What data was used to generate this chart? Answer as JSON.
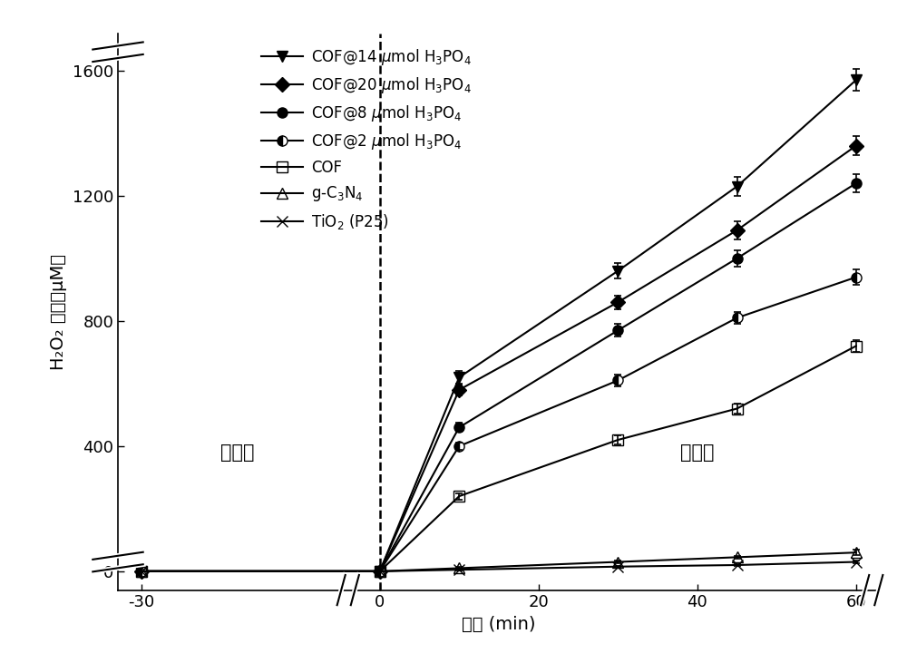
{
  "series": [
    {
      "label_display": "COF@14 μmol H$_3$PO$_4$",
      "marker": "v",
      "fillstyle": "full",
      "x": [
        -30,
        0,
        10,
        30,
        45,
        60
      ],
      "y": [
        0,
        0,
        620,
        960,
        1230,
        1570
      ],
      "yerr": [
        0,
        0,
        20,
        25,
        30,
        35
      ]
    },
    {
      "label_display": "COF@20 μmol H$_3$PO$_4$",
      "marker": "D",
      "fillstyle": "full",
      "x": [
        -30,
        0,
        10,
        30,
        45,
        60
      ],
      "y": [
        0,
        0,
        580,
        860,
        1090,
        1360
      ],
      "yerr": [
        0,
        0,
        18,
        22,
        28,
        30
      ]
    },
    {
      "label_display": "COF@8 μmol H$_3$PO$_4$",
      "marker": "o",
      "fillstyle": "full",
      "x": [
        -30,
        0,
        10,
        30,
        45,
        60
      ],
      "y": [
        0,
        0,
        460,
        770,
        1000,
        1240
      ],
      "yerr": [
        0,
        0,
        15,
        20,
        25,
        28
      ]
    },
    {
      "label_display": "COF@2 μmol H$_3$PO$_4$",
      "marker": "o",
      "fillstyle": "left",
      "x": [
        -30,
        0,
        10,
        30,
        45,
        60
      ],
      "y": [
        0,
        0,
        400,
        610,
        810,
        940
      ],
      "yerr": [
        0,
        0,
        12,
        18,
        20,
        25
      ]
    },
    {
      "label_display": "COF",
      "marker": "s",
      "fillstyle": "none",
      "x": [
        -30,
        0,
        10,
        30,
        45,
        60
      ],
      "y": [
        0,
        0,
        240,
        420,
        520,
        720
      ],
      "yerr": [
        0,
        0,
        10,
        15,
        15,
        20
      ]
    },
    {
      "label_display": "g-C$_3$N$_4$",
      "marker": "^",
      "fillstyle": "none",
      "x": [
        -30,
        0,
        10,
        30,
        45,
        60
      ],
      "y": [
        0,
        0,
        10,
        30,
        45,
        60
      ],
      "yerr": [
        0,
        0,
        3,
        5,
        5,
        8
      ]
    },
    {
      "label_display": "TiO$_2$ (P25)",
      "marker": "x",
      "fillstyle": "full",
      "x": [
        -30,
        0,
        10,
        30,
        45,
        60
      ],
      "y": [
        0,
        0,
        5,
        15,
        20,
        30
      ],
      "yerr": [
        0,
        0,
        2,
        3,
        3,
        5
      ]
    }
  ],
  "legend_labels": [
    "COF@14 μmol H",
    "COF@20 μmol H",
    "COF@8 μmol H",
    "COF@2 μmol H",
    "COF",
    "g-C",
    "TiO"
  ],
  "xlabel": "时间 (min)",
  "ylabel_chinese": "H₂O₂ 浓度（μM）",
  "xlim": [
    -33,
    63
  ],
  "ylim": [
    -60,
    1720
  ],
  "yticks": [
    0,
    400,
    800,
    1200,
    1600
  ],
  "xticks": [
    -30,
    0,
    20,
    40,
    60
  ],
  "dark_label": "黑暗中",
  "light_label": "光照下",
  "vline_x": 0,
  "markersize": 8,
  "linewidth": 1.5,
  "fontsize_tick": 13,
  "fontsize_label": 14,
  "fontsize_legend": 12,
  "fontsize_annot": 15
}
